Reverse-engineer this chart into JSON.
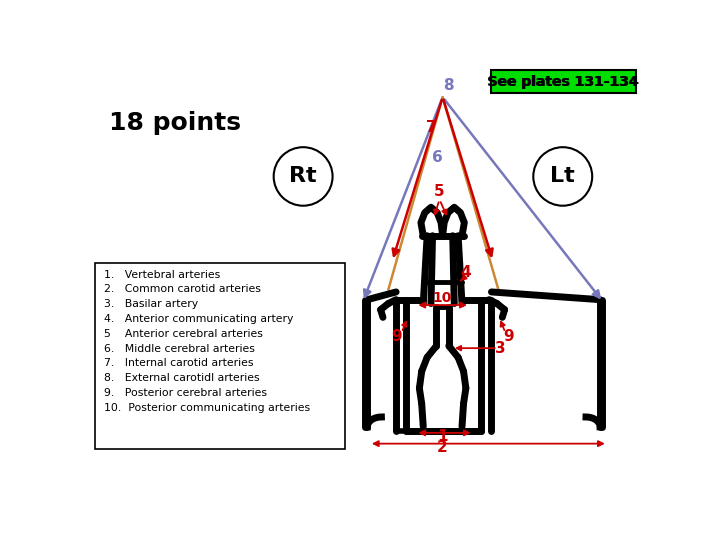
{
  "title": "18 points",
  "see_plates_text": "See plates 131-134",
  "see_plates_bg": "#00dd00",
  "rt_label": "Rt",
  "lt_label": "Lt",
  "legend_items": [
    "1.   Vertebral arteries",
    "2.   Common carotid arteries",
    "3.   Basilar artery",
    "4.   Anterior communicating artery",
    "5    Anterior cerebral arteries",
    "6.   Middle cerebral arteries",
    "7.   Internal carotid arteries",
    "8.   External carotidl arteries",
    "9.   Posterior cerebral arteries",
    "10.  Posterior communicating arteries"
  ],
  "bg_color": "#ffffff",
  "red": "#cc0000",
  "blue": "#7777bb",
  "orange": "#cc8833",
  "black": "#000000",
  "green_bg": "#00cc44"
}
